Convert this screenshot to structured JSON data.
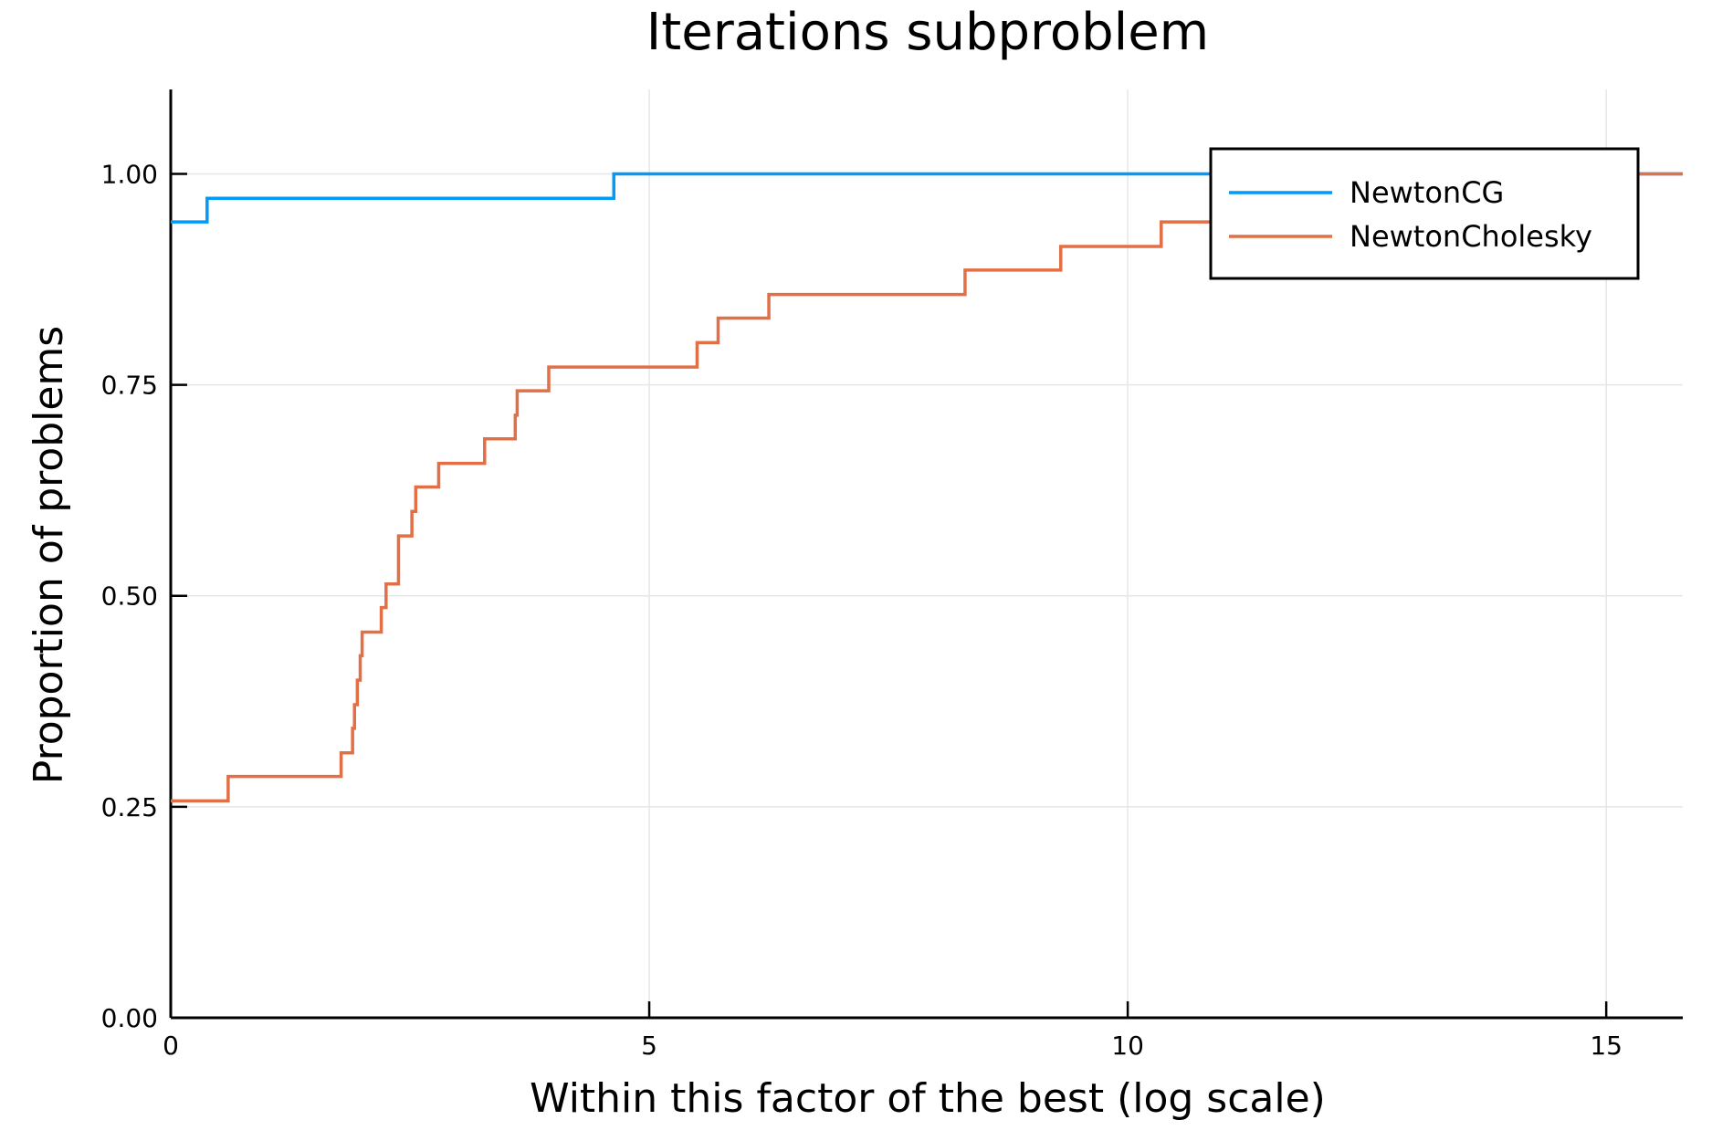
{
  "chart_data": {
    "type": "line",
    "step": true,
    "title": "Iterations subproblem",
    "xlabel": "Within this factor of the best (log scale)",
    "ylabel": "Proportion of problems",
    "xlim": [
      0,
      15.8
    ],
    "ylim": [
      0,
      1.1
    ],
    "x_ticks": [
      0,
      5,
      10,
      15
    ],
    "x_tick_labels": [
      "0",
      "5",
      "10",
      "15"
    ],
    "y_ticks": [
      0,
      0.25,
      0.5,
      0.75,
      1.0
    ],
    "y_tick_labels": [
      "0.00",
      "0.25",
      "0.50",
      "0.75",
      "1.00"
    ],
    "grid": true,
    "legend_position": "top-right",
    "series": [
      {
        "name": "NewtonCG",
        "color": "#009af9",
        "x": [
          0,
          0.38,
          4.63,
          15.8
        ],
        "y": [
          0.943,
          0.971,
          1.0,
          1.0
        ]
      },
      {
        "name": "NewtonCholesky",
        "color": "#e26f46",
        "x": [
          0,
          0.6,
          1.78,
          1.9,
          1.92,
          1.95,
          1.98,
          2.0,
          2.03,
          2.08,
          2.2,
          2.25,
          2.38,
          2.52,
          2.56,
          2.8,
          3.28,
          3.6,
          3.62,
          3.95,
          5.5,
          5.72,
          6.25,
          8.3,
          9.3,
          10.35,
          11.1,
          11.5,
          15.2,
          15.8
        ],
        "y": [
          0.257,
          0.286,
          0.314,
          0.343,
          0.371,
          0.4,
          0.429,
          0.457,
          0.457,
          0.457,
          0.486,
          0.514,
          0.571,
          0.6,
          0.629,
          0.657,
          0.686,
          0.714,
          0.743,
          0.771,
          0.8,
          0.829,
          0.857,
          0.886,
          0.914,
          0.943,
          0.943,
          0.943,
          1.0,
          1.0
        ]
      }
    ]
  }
}
